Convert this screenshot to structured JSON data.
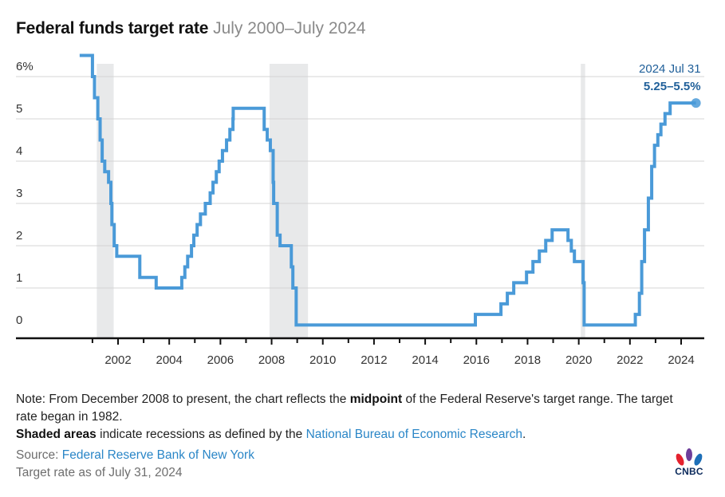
{
  "header": {
    "title": "Federal funds target rate",
    "subtitle": "July 2000–July 2024"
  },
  "annotation": {
    "date": "2024 Jul 31",
    "value": "5.25–5.5%"
  },
  "notes": {
    "note_prefix": "Note: From December 2008 to present, the chart reflects the ",
    "note_bold": "midpoint",
    "note_suffix": " of the Federal Reserve's target range. The target rate began in 1982.",
    "shaded_bold": "Shaded areas",
    "shaded_text": " indicate recessions as defined by the ",
    "shaded_link": "National Bureau of Economic Research",
    "shaded_end": ".",
    "source_label": "Source: ",
    "source_link": "Federal Reserve Bank of New York",
    "asof": "Target rate as of July 31, 2024"
  },
  "logo": {
    "text": "CNBC"
  },
  "colors": {
    "series": "#4a9ad8",
    "annotation": "#1f5f99",
    "recession": "#e8e9ea",
    "link": "#2a86c7"
  },
  "chart_data": {
    "type": "line",
    "step": true,
    "title": "Federal funds target rate",
    "subtitle": "July 2000–July 2024",
    "xlabel": "",
    "ylabel": "",
    "xlim": [
      2000.5,
      2024.9
    ],
    "ylim": [
      0,
      6.5
    ],
    "y_ticks": [
      0,
      1,
      2,
      3,
      4,
      5,
      6
    ],
    "y_tick_labels": [
      "0",
      "1",
      "2",
      "3",
      "4",
      "5",
      "6%"
    ],
    "x_ticks": [
      2002,
      2004,
      2006,
      2008,
      2010,
      2012,
      2014,
      2016,
      2018,
      2020,
      2022,
      2024
    ],
    "x_tick_labels": [
      "2002",
      "2004",
      "2006",
      "2008",
      "2010",
      "2012",
      "2014",
      "2016",
      "2018",
      "2020",
      "2022",
      "2024"
    ],
    "minor_x_ticks": [
      2001,
      2003,
      2005,
      2007,
      2009,
      2011,
      2013,
      2015,
      2017,
      2019,
      2021,
      2023
    ],
    "grid": "horizontal",
    "recessions": [
      {
        "start": 2001.17,
        "end": 2001.83
      },
      {
        "start": 2007.92,
        "end": 2009.42
      },
      {
        "start": 2020.08,
        "end": 2020.25
      }
    ],
    "series": [
      {
        "name": "Federal funds target rate",
        "points": [
          [
            2000.5,
            6.5
          ],
          [
            2001.0,
            6.0
          ],
          [
            2001.08,
            5.5
          ],
          [
            2001.21,
            5.0
          ],
          [
            2001.3,
            4.5
          ],
          [
            2001.38,
            4.0
          ],
          [
            2001.48,
            3.75
          ],
          [
            2001.63,
            3.5
          ],
          [
            2001.72,
            3.0
          ],
          [
            2001.76,
            2.5
          ],
          [
            2001.85,
            2.0
          ],
          [
            2001.95,
            1.75
          ],
          [
            2002.85,
            1.25
          ],
          [
            2003.49,
            1.0
          ],
          [
            2004.49,
            1.25
          ],
          [
            2004.61,
            1.5
          ],
          [
            2004.72,
            1.75
          ],
          [
            2004.87,
            2.0
          ],
          [
            2004.96,
            2.25
          ],
          [
            2005.09,
            2.5
          ],
          [
            2005.22,
            2.75
          ],
          [
            2005.41,
            3.0
          ],
          [
            2005.6,
            3.25
          ],
          [
            2005.71,
            3.5
          ],
          [
            2005.84,
            3.75
          ],
          [
            2005.95,
            4.0
          ],
          [
            2006.08,
            4.25
          ],
          [
            2006.24,
            4.5
          ],
          [
            2006.37,
            4.75
          ],
          [
            2006.49,
            5.0
          ],
          [
            2006.5,
            5.25
          ],
          [
            2007.71,
            4.75
          ],
          [
            2007.83,
            4.5
          ],
          [
            2007.95,
            4.25
          ],
          [
            2008.06,
            3.5
          ],
          [
            2008.08,
            3.0
          ],
          [
            2008.22,
            2.25
          ],
          [
            2008.33,
            2.0
          ],
          [
            2008.77,
            1.5
          ],
          [
            2008.83,
            1.0
          ],
          [
            2008.96,
            0.125
          ],
          [
            2015.96,
            0.375
          ],
          [
            2016.96,
            0.625
          ],
          [
            2017.21,
            0.875
          ],
          [
            2017.46,
            1.125
          ],
          [
            2017.96,
            1.375
          ],
          [
            2018.21,
            1.625
          ],
          [
            2018.46,
            1.875
          ],
          [
            2018.71,
            2.125
          ],
          [
            2018.96,
            2.375
          ],
          [
            2019.58,
            2.125
          ],
          [
            2019.71,
            1.875
          ],
          [
            2019.83,
            1.625
          ],
          [
            2020.17,
            1.125
          ],
          [
            2020.21,
            0.125
          ],
          [
            2022.21,
            0.375
          ],
          [
            2022.37,
            0.875
          ],
          [
            2022.46,
            1.625
          ],
          [
            2022.57,
            2.375
          ],
          [
            2022.72,
            3.125
          ],
          [
            2022.85,
            3.875
          ],
          [
            2022.96,
            4.375
          ],
          [
            2023.09,
            4.625
          ],
          [
            2023.21,
            4.875
          ],
          [
            2023.37,
            5.125
          ],
          [
            2023.57,
            5.375
          ],
          [
            2024.58,
            5.375
          ]
        ]
      }
    ],
    "annotations": [
      {
        "x": 2024.58,
        "y": 5.375,
        "label_date": "2024 Jul 31",
        "label_value": "5.25–5.5%"
      }
    ]
  }
}
